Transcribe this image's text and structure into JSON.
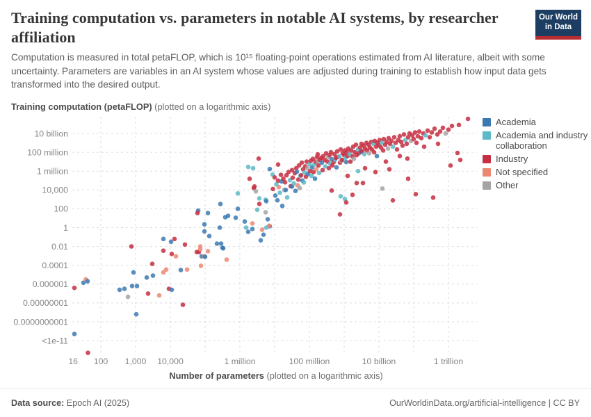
{
  "header": {
    "title": "Training computation vs. parameters in notable AI systems, by researcher affiliation",
    "subtitle": "Computation is measured in total petaFLOP, which is 10¹⁵ floating-point operations estimated from AI literature, albeit with some uncertainty. Parameters are variables in an AI system whose values are adjusted during training to establish how input data gets transformed into the desired output.",
    "logo_line1": "Our World",
    "logo_line2": "in Data"
  },
  "axis_titles": {
    "y_bold": "Training computation (petaFLOP)",
    "y_normal": " (plotted on a logarithmic axis)",
    "x_bold": "Number of parameters",
    "x_normal": " (plotted on a logarithmic axis)"
  },
  "footer": {
    "source_label": "Data source:",
    "source_value": " Epoch AI (2025)",
    "right_text": "OurWorldinData.org/artificial-intelligence | CC BY"
  },
  "chart_data": {
    "type": "scatter",
    "title": "Training computation vs. parameters in notable AI systems, by researcher affiliation",
    "x_axis": {
      "label": "Number of parameters (plotted on a logarithmic axis)",
      "scale": "log10",
      "range_log": [
        1.2,
        12.8
      ],
      "ticks": [
        {
          "label": "16",
          "log": 1.204
        },
        {
          "label": "100",
          "log": 2
        },
        {
          "label": "1,000",
          "log": 3
        },
        {
          "label": "10,000",
          "log": 4
        },
        {
          "label": "1 million",
          "log": 6
        },
        {
          "label": "100 million",
          "log": 8
        },
        {
          "label": "10 billion",
          "log": 10
        },
        {
          "label": "1 trillion",
          "log": 12
        }
      ],
      "gridlines_log": [
        2,
        3,
        4,
        5,
        6,
        7,
        8,
        9,
        10,
        11,
        12
      ]
    },
    "y_axis": {
      "label": "Training computation (petaFLOP) (plotted on a logarithmic axis)",
      "scale": "log10",
      "range_log": [
        -13.6,
        11.8
      ],
      "ticks": [
        {
          "label": "10 billion",
          "log": 10
        },
        {
          "label": "100 million",
          "log": 8
        },
        {
          "label": "1 million",
          "log": 6
        },
        {
          "label": "10,000",
          "log": 4
        },
        {
          "label": "100",
          "log": 2
        },
        {
          "label": "1",
          "log": 0
        },
        {
          "label": "0.01",
          "log": -2
        },
        {
          "label": "0.0001",
          "log": -4
        },
        {
          "label": "0.000001",
          "log": -6
        },
        {
          "label": "0.00000001",
          "log": -8
        },
        {
          "label": "0.0000000001",
          "log": -10
        },
        {
          "label": "<1e-11",
          "log": -12
        }
      ],
      "gridlines_log": [
        10,
        8,
        6,
        4,
        2,
        0,
        -2,
        -4,
        -6,
        -8,
        -10,
        -12
      ]
    },
    "legend": [
      {
        "label": "Academia",
        "color": "#3b79b1"
      },
      {
        "label": "Academia and industry collaboration",
        "color": "#5cb9c6"
      },
      {
        "label": "Industry",
        "color": "#c62e41"
      },
      {
        "label": "Not specified",
        "color": "#ec8774"
      },
      {
        "label": "Other",
        "color": "#a5a3a3"
      }
    ],
    "point_format": [
      "log10_parameters",
      "log10_petaFLOP",
      "affiliation_index"
    ],
    "points": [
      [
        1.24,
        -6.4,
        2
      ],
      [
        1.5,
        -5.85,
        0
      ],
      [
        1.57,
        -5.5,
        3
      ],
      [
        1.62,
        -5.7,
        0
      ],
      [
        1.24,
        -11.3,
        0
      ],
      [
        1.63,
        -13.3,
        2
      ],
      [
        2.54,
        -6.6,
        0
      ],
      [
        2.68,
        -6.5,
        0
      ],
      [
        2.78,
        -7.35,
        4
      ],
      [
        2.88,
        -2.0,
        2
      ],
      [
        2.9,
        -6.2,
        0
      ],
      [
        3.04,
        -6.2,
        0
      ],
      [
        2.94,
        -4.75,
        0
      ],
      [
        3.02,
        -9.2,
        0
      ],
      [
        3.32,
        -5.3,
        0
      ],
      [
        3.36,
        -7.0,
        2
      ],
      [
        3.48,
        -3.85,
        2
      ],
      [
        3.5,
        -5.1,
        0
      ],
      [
        3.68,
        -7.2,
        3
      ],
      [
        3.8,
        -1.2,
        0
      ],
      [
        3.8,
        -2.45,
        2
      ],
      [
        3.8,
        -4.75,
        3
      ],
      [
        3.88,
        -4.45,
        3
      ],
      [
        3.96,
        -6.5,
        2
      ],
      [
        4.02,
        -1.5,
        0
      ],
      [
        4.04,
        -2.8,
        2
      ],
      [
        4.12,
        -1.2,
        2
      ],
      [
        4.16,
        -3.05,
        3
      ],
      [
        4.04,
        -6.6,
        0
      ],
      [
        4.3,
        -4.5,
        0
      ],
      [
        4.42,
        -1.8,
        2
      ],
      [
        4.36,
        -8.2,
        2
      ],
      [
        4.48,
        -4.45,
        3
      ],
      [
        4.82,
        -2.6,
        2
      ],
      [
        4.86,
        -2.0,
        3
      ],
      [
        4.9,
        -3.05,
        0
      ],
      [
        4.98,
        -3.05,
        3
      ],
      [
        4.98,
        -0.4,
        0
      ],
      [
        4.88,
        -4.05,
        3
      ],
      [
        5.08,
        -2.5,
        3
      ],
      [
        4.8,
        1.8,
        0
      ],
      [
        4.78,
        1.55,
        2
      ],
      [
        5.08,
        1.55,
        0
      ],
      [
        4.98,
        0.35,
        0
      ],
      [
        4.76,
        -2.6,
        2
      ],
      [
        4.86,
        -2.3,
        3
      ],
      [
        5.0,
        -3.1,
        0
      ],
      [
        5.12,
        -0.9,
        0
      ],
      [
        5.34,
        -1.7,
        0
      ],
      [
        5.46,
        -1.7,
        0
      ],
      [
        5.44,
        2.5,
        0
      ],
      [
        5.58,
        1.1,
        0
      ],
      [
        5.94,
        2.0,
        0
      ],
      [
        5.66,
        1.25,
        0
      ],
      [
        5.88,
        1.05,
        0
      ],
      [
        5.42,
        0.0,
        0
      ],
      [
        5.5,
        -2.15,
        0
      ],
      [
        5.52,
        -2.2,
        0
      ],
      [
        5.62,
        -3.4,
        3
      ],
      [
        5.94,
        3.63,
        1
      ],
      [
        6.14,
        0.65,
        0
      ],
      [
        6.18,
        0.0,
        1
      ],
      [
        6.24,
        -0.45,
        0
      ],
      [
        6.36,
        -0.15,
        0
      ],
      [
        6.24,
        6.44,
        1
      ],
      [
        6.38,
        6.3,
        1
      ],
      [
        6.54,
        7.33,
        2
      ],
      [
        6.28,
        5.19,
        2
      ],
      [
        6.42,
        4.37,
        2
      ],
      [
        6.4,
        4.2,
        2
      ],
      [
        6.46,
        3.85,
        4
      ],
      [
        6.56,
        3.11,
        1
      ],
      [
        6.74,
        2.96,
        1
      ],
      [
        6.56,
        2.52,
        2
      ],
      [
        6.74,
        1.63,
        4
      ],
      [
        6.8,
        0.89,
        0
      ],
      [
        6.86,
        0.15,
        0
      ],
      [
        6.64,
        -0.22,
        3
      ],
      [
        6.68,
        -0.75,
        0
      ],
      [
        6.6,
        -1.35,
        0
      ],
      [
        6.76,
        0.0,
        1
      ],
      [
        6.76,
        2.81,
        0
      ],
      [
        6.86,
        6.22,
        0
      ],
      [
        6.94,
        5.63,
        1
      ],
      [
        6.5,
        1.9,
        1
      ],
      [
        6.36,
        0.45,
        3
      ],
      [
        6.84,
        0.2,
        3
      ],
      [
        7.1,
        6.7,
        2
      ],
      [
        6.95,
        4.1,
        2
      ],
      [
        7.0,
        5.33,
        2
      ],
      [
        7.02,
        3.4,
        0
      ],
      [
        7.05,
        4.6,
        1
      ],
      [
        7.08,
        2.9,
        0
      ],
      [
        7.1,
        5.0,
        2
      ],
      [
        7.12,
        4.3,
        3
      ],
      [
        7.15,
        3.7,
        1
      ],
      [
        7.18,
        5.6,
        2
      ],
      [
        7.2,
        4.9,
        0
      ],
      [
        7.22,
        2.3,
        0
      ],
      [
        7.25,
        5.2,
        2
      ],
      [
        7.28,
        4.0,
        4
      ],
      [
        7.3,
        4.81,
        2
      ],
      [
        7.32,
        4.0,
        0
      ],
      [
        7.34,
        5.56,
        2
      ],
      [
        7.36,
        3.2,
        1
      ],
      [
        7.4,
        5.9,
        2
      ],
      [
        7.44,
        5.04,
        1
      ],
      [
        7.46,
        4.4,
        2
      ],
      [
        7.5,
        4.37,
        0
      ],
      [
        7.5,
        6.1,
        2
      ],
      [
        7.52,
        5.3,
        2
      ],
      [
        7.55,
        4.7,
        1
      ],
      [
        7.58,
        5.78,
        2
      ],
      [
        7.6,
        3.9,
        0
      ],
      [
        7.62,
        6.3,
        2
      ],
      [
        7.64,
        5.93,
        0
      ],
      [
        7.66,
        4.5,
        3
      ],
      [
        7.68,
        5.1,
        2
      ],
      [
        7.7,
        6.6,
        2
      ],
      [
        7.72,
        4.2,
        4
      ],
      [
        7.74,
        5.5,
        1
      ],
      [
        7.76,
        5.56,
        2
      ],
      [
        7.78,
        6.9,
        2
      ],
      [
        7.8,
        5.0,
        0
      ],
      [
        7.82,
        6.2,
        2
      ],
      [
        7.84,
        4.8,
        1
      ],
      [
        7.86,
        5.85,
        1
      ],
      [
        7.88,
        6.5,
        2
      ],
      [
        7.9,
        5.4,
        2
      ],
      [
        7.92,
        7.0,
        2
      ],
      [
        7.94,
        6.3,
        4
      ],
      [
        7.96,
        5.7,
        0
      ],
      [
        8.0,
        6.74,
        1
      ],
      [
        8.02,
        6.0,
        2
      ],
      [
        8.04,
        7.1,
        2
      ],
      [
        8.06,
        5.5,
        1
      ],
      [
        8.08,
        6.4,
        0
      ],
      [
        8.1,
        7.3,
        2
      ],
      [
        8.12,
        5.9,
        2
      ],
      [
        8.14,
        6.7,
        1
      ],
      [
        8.16,
        5.2,
        0
      ],
      [
        8.18,
        7.0,
        2
      ],
      [
        8.2,
        6.2,
        3
      ],
      [
        8.22,
        7.5,
        2
      ],
      [
        8.24,
        7.78,
        2
      ],
      [
        8.24,
        7.04,
        4
      ],
      [
        8.26,
        6.6,
        2
      ],
      [
        8.28,
        5.8,
        1
      ],
      [
        8.3,
        7.2,
        2
      ],
      [
        8.34,
        7.41,
        2
      ],
      [
        8.36,
        6.9,
        0
      ],
      [
        8.38,
        6.1,
        2
      ],
      [
        8.4,
        7.6,
        2
      ],
      [
        8.44,
        7.19,
        2
      ],
      [
        8.46,
        6.5,
        1
      ],
      [
        8.48,
        7.9,
        2
      ],
      [
        8.52,
        7.0,
        2
      ],
      [
        8.54,
        7.48,
        4
      ],
      [
        8.56,
        6.3,
        2
      ],
      [
        8.58,
        7.7,
        2
      ],
      [
        8.6,
        6.8,
        1
      ],
      [
        8.62,
        8.0,
        2
      ],
      [
        8.64,
        7.26,
        0
      ],
      [
        8.66,
        6.6,
        2
      ],
      [
        8.7,
        6.96,
        2
      ],
      [
        8.72,
        7.8,
        2
      ],
      [
        8.74,
        7.2,
        1
      ],
      [
        8.76,
        7.41,
        2
      ],
      [
        8.78,
        6.4,
        0
      ],
      [
        8.8,
        8.1,
        2
      ],
      [
        8.82,
        7.5,
        2
      ],
      [
        8.86,
        7.56,
        1
      ],
      [
        8.88,
        6.9,
        2
      ],
      [
        8.9,
        8.3,
        2
      ],
      [
        8.92,
        7.1,
        4
      ],
      [
        8.94,
        7.19,
        2
      ],
      [
        8.96,
        7.9,
        2
      ],
      [
        9.0,
        7.7,
        2
      ],
      [
        9.02,
        8.2,
        2
      ],
      [
        9.04,
        7.4,
        1
      ],
      [
        9.06,
        6.96,
        0
      ],
      [
        9.08,
        8.0,
        2
      ],
      [
        9.1,
        7.6,
        2
      ],
      [
        9.12,
        8.4,
        2
      ],
      [
        9.16,
        7.78,
        1
      ],
      [
        9.18,
        7.0,
        2
      ],
      [
        9.2,
        8.2,
        2
      ],
      [
        9.24,
        7.56,
        2
      ],
      [
        9.26,
        8.6,
        2
      ],
      [
        9.28,
        7.3,
        4
      ],
      [
        9.3,
        8.0,
        2
      ],
      [
        9.34,
        8.8,
        2
      ],
      [
        9.36,
        7.7,
        2
      ],
      [
        9.4,
        8.3,
        1
      ],
      [
        9.42,
        7.9,
        2
      ],
      [
        9.46,
        8.5,
        2
      ],
      [
        9.48,
        8.05,
        0
      ],
      [
        9.5,
        8.9,
        2
      ],
      [
        9.52,
        8.1,
        2
      ],
      [
        9.56,
        8.7,
        2
      ],
      [
        9.58,
        7.8,
        1
      ],
      [
        9.6,
        8.4,
        2
      ],
      [
        9.64,
        9.0,
        2
      ],
      [
        9.66,
        8.2,
        2
      ],
      [
        9.7,
        8.8,
        2
      ],
      [
        9.72,
        7.9,
        4
      ],
      [
        9.74,
        8.5,
        2
      ],
      [
        9.78,
        9.1,
        2
      ],
      [
        9.8,
        8.3,
        2
      ],
      [
        9.84,
        8.9,
        1
      ],
      [
        9.86,
        8.0,
        2
      ],
      [
        9.88,
        9.2,
        2
      ],
      [
        9.92,
        8.6,
        2
      ],
      [
        9.94,
        7.6,
        0
      ],
      [
        9.96,
        9.0,
        2
      ],
      [
        10.0,
        8.75,
        2
      ],
      [
        10.02,
        9.3,
        2
      ],
      [
        10.06,
        8.5,
        2
      ],
      [
        10.08,
        9.0,
        1
      ],
      [
        10.12,
        8.2,
        2
      ],
      [
        10.14,
        9.4,
        2
      ],
      [
        10.18,
        8.8,
        2
      ],
      [
        10.22,
        9.1,
        2
      ],
      [
        10.26,
        8.4,
        4
      ],
      [
        10.28,
        9.5,
        2
      ],
      [
        10.32,
        8.9,
        2
      ],
      [
        10.36,
        9.2,
        2
      ],
      [
        10.4,
        8.6,
        1
      ],
      [
        10.44,
        9.6,
        2
      ],
      [
        10.48,
        9.0,
        2
      ],
      [
        10.52,
        8.3,
        2
      ],
      [
        10.56,
        9.3,
        2
      ],
      [
        10.6,
        9.7,
        2
      ],
      [
        10.64,
        9.1,
        2
      ],
      [
        10.68,
        8.7,
        2
      ],
      [
        10.72,
        9.9,
        2
      ],
      [
        10.76,
        9.3,
        1
      ],
      [
        10.8,
        8.9,
        2
      ],
      [
        10.84,
        9.6,
        2
      ],
      [
        10.88,
        10.0,
        2
      ],
      [
        10.92,
        9.2,
        4
      ],
      [
        10.96,
        9.8,
        2
      ],
      [
        11.0,
        9.4,
        2
      ],
      [
        11.04,
        10.1,
        2
      ],
      [
        11.08,
        9.0,
        2
      ],
      [
        11.12,
        9.7,
        2
      ],
      [
        11.16,
        10.2,
        2
      ],
      [
        11.22,
        9.5,
        2
      ],
      [
        11.28,
        10.0,
        2
      ],
      [
        11.34,
        9.8,
        1
      ],
      [
        11.4,
        10.3,
        2
      ],
      [
        11.46,
        9.6,
        2
      ],
      [
        11.52,
        10.1,
        2
      ],
      [
        11.6,
        10.5,
        2
      ],
      [
        11.68,
        9.9,
        2
      ],
      [
        11.76,
        10.2,
        2
      ],
      [
        11.84,
        10.6,
        2
      ],
      [
        11.92,
        10.0,
        4
      ],
      [
        12.0,
        10.4,
        2
      ],
      [
        12.1,
        10.8,
        2
      ],
      [
        12.3,
        10.9,
        2
      ],
      [
        12.56,
        11.55,
        2
      ],
      [
        8.64,
        3.93,
        2
      ],
      [
        8.9,
        3.33,
        1
      ],
      [
        9.02,
        3.04,
        1
      ],
      [
        9.06,
        2.67,
        2
      ],
      [
        9.24,
        3.48,
        2
      ],
      [
        8.88,
        1.41,
        2
      ],
      [
        9.36,
        4.74,
        2
      ],
      [
        9.54,
        4.74,
        2
      ],
      [
        10.1,
        4.15,
        4
      ],
      [
        10.4,
        2.89,
        2
      ],
      [
        11.06,
        3.56,
        2
      ],
      [
        11.56,
        3.19,
        2
      ],
      [
        10.82,
        7.33,
        2
      ],
      [
        12.26,
        7.93,
        2
      ],
      [
        12.34,
        7.19,
        2
      ],
      [
        12.06,
        6.59,
        2
      ],
      [
        10.84,
        5.19,
        2
      ],
      [
        10.3,
        6.2,
        2
      ],
      [
        11.3,
        8.6,
        2
      ],
      [
        11.7,
        8.9,
        2
      ],
      [
        9.6,
        6.3,
        2
      ],
      [
        9.9,
        5.9,
        2
      ],
      [
        10.2,
        7.0,
        2
      ],
      [
        10.6,
        7.6,
        2
      ],
      [
        9.4,
        6.0,
        1
      ],
      [
        9.1,
        5.5,
        2
      ]
    ]
  }
}
